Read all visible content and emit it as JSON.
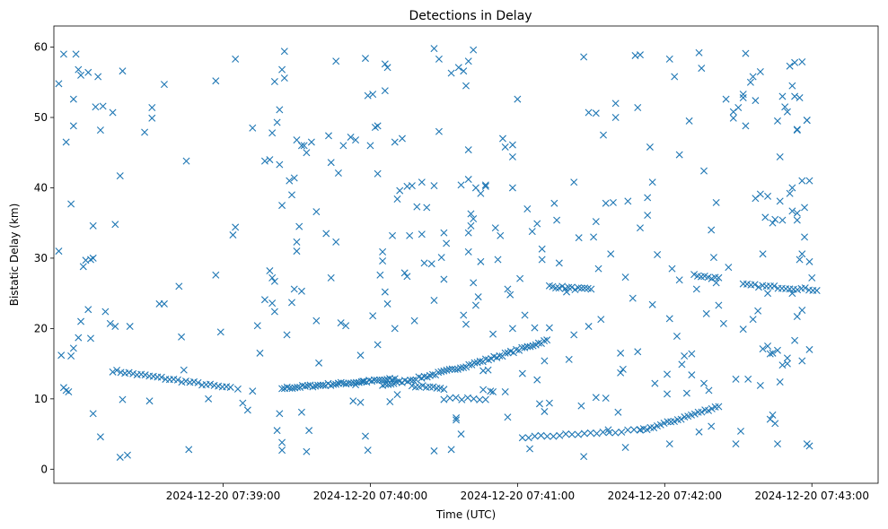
{
  "chart_data": {
    "type": "scatter",
    "title": "Detections in Delay",
    "xlabel": "Time (UTC)",
    "ylabel": "Bistatic Delay (km)",
    "x_unit": "seconds since 2024-12-20 07:38:00",
    "xlim": [
      -9,
      327
    ],
    "ylim": [
      -2,
      63
    ],
    "xticks": [
      60,
      120,
      180,
      240,
      300
    ],
    "xtick_labels": [
      "2024-12-20 07:39:00",
      "2024-12-20 07:40:00",
      "2024-12-20 07:41:00",
      "2024-12-20 07:42:00",
      "2024-12-20 07:43:00"
    ],
    "yticks": [
      0,
      10,
      20,
      30,
      40,
      50,
      60
    ],
    "ytick_labels": [
      "0",
      "10",
      "20",
      "30",
      "40",
      "50",
      "60"
    ],
    "marker": "x",
    "color": "#1f77b4",
    "tracks": [
      {
        "name": "track-1",
        "start": [
          15,
          14
        ],
        "end": [
          63,
          11.5
        ],
        "n": 30
      },
      {
        "name": "track-2",
        "start": [
          84,
          11.5
        ],
        "end": [
          130,
          12.8
        ],
        "n": 45
      },
      {
        "name": "track-3",
        "start": [
          125,
          12
        ],
        "end": [
          192,
          18.3
        ],
        "n": 60
      },
      {
        "name": "track-4",
        "start": [
          193,
          26
        ],
        "end": [
          210,
          25.5
        ],
        "n": 14
      },
      {
        "name": "track-5",
        "start": [
          182,
          4.5
        ],
        "end": [
          230,
          5.5
        ],
        "n": 20
      },
      {
        "name": "track-6",
        "start": [
          230,
          5.5
        ],
        "end": [
          262,
          9
        ],
        "n": 24
      },
      {
        "name": "track-7",
        "start": [
          252,
          27.6
        ],
        "end": [
          262,
          27.1
        ],
        "n": 8
      },
      {
        "name": "track-8",
        "start": [
          272,
          26.2
        ],
        "end": [
          302,
          25.5
        ],
        "n": 20
      },
      {
        "name": "track-9",
        "start": [
          137,
          11.8
        ],
        "end": [
          150,
          11.5
        ],
        "n": 10
      },
      {
        "name": "track-10",
        "start": [
          150,
          10
        ],
        "end": [
          167,
          10
        ],
        "n": 8
      }
    ],
    "points": [
      [
        -7,
        54.8
      ],
      [
        -7,
        31
      ],
      [
        -5,
        59
      ],
      [
        -4,
        46.5
      ],
      [
        -2,
        37.7
      ],
      [
        -1,
        48.8
      ],
      [
        -1,
        52.6
      ],
      [
        0,
        59
      ],
      [
        1,
        56.8
      ],
      [
        2,
        56
      ],
      [
        5,
        56.4
      ],
      [
        6,
        29.8
      ],
      [
        7,
        34.6
      ],
      [
        7,
        30
      ],
      [
        8,
        51.5
      ],
      [
        9,
        55.8
      ],
      [
        10,
        48.2
      ],
      [
        11,
        51.6
      ],
      [
        15,
        50.7
      ],
      [
        16,
        34.8
      ],
      [
        19,
        56.6
      ],
      [
        18,
        41.7
      ],
      [
        22,
        20.3
      ],
      [
        28,
        47.9
      ],
      [
        31,
        51.4
      ],
      [
        31,
        49.9
      ],
      [
        36,
        54.7
      ],
      [
        45,
        43.8
      ],
      [
        43,
        18.8
      ],
      [
        42,
        26
      ],
      [
        57,
        55.2
      ],
      [
        65,
        58.3
      ],
      [
        72,
        48.5
      ],
      [
        64,
        33.3
      ],
      [
        65,
        34.4
      ],
      [
        77,
        43.8
      ],
      [
        79,
        44
      ],
      [
        80,
        47.8
      ],
      [
        81,
        55.1
      ],
      [
        84,
        56.8
      ],
      [
        85,
        59.4
      ],
      [
        85,
        55.6
      ],
      [
        83,
        51.1
      ],
      [
        82,
        49.3
      ],
      [
        83,
        43.3
      ],
      [
        84,
        37.5
      ],
      [
        87,
        41
      ],
      [
        88,
        39
      ],
      [
        89,
        41.4
      ],
      [
        90,
        46.8
      ],
      [
        92,
        46
      ],
      [
        93,
        46
      ],
      [
        94,
        45
      ],
      [
        96,
        46.5
      ],
      [
        98,
        36.6
      ],
      [
        103,
        47.4
      ],
      [
        104,
        43.6
      ],
      [
        106,
        58
      ],
      [
        107,
        42.1
      ],
      [
        109,
        46
      ],
      [
        112,
        47.2
      ],
      [
        114,
        46.8
      ],
      [
        118,
        58.4
      ],
      [
        119,
        53.1
      ],
      [
        120,
        46
      ],
      [
        121,
        53.3
      ],
      [
        122,
        48.6
      ],
      [
        123,
        42
      ],
      [
        123,
        48.8
      ],
      [
        126,
        53.8
      ],
      [
        126,
        57.6
      ],
      [
        127,
        57.1
      ],
      [
        130,
        46.5
      ],
      [
        133,
        47
      ],
      [
        135,
        40.2
      ],
      [
        137,
        40.3
      ],
      [
        141,
        40.8
      ],
      [
        146,
        40.3
      ],
      [
        146,
        59.8
      ],
      [
        148,
        58.3
      ],
      [
        148,
        48
      ],
      [
        153,
        56.3
      ],
      [
        156,
        57.1
      ],
      [
        158,
        56.6
      ],
      [
        159,
        54.5
      ],
      [
        160,
        58
      ],
      [
        162,
        59.6
      ],
      [
        160,
        41.2
      ],
      [
        160,
        45.4
      ],
      [
        163,
        40
      ],
      [
        167,
        40.2
      ],
      [
        165,
        39.2
      ],
      [
        167,
        40.4
      ],
      [
        174,
        47
      ],
      [
        175,
        45.8
      ],
      [
        178,
        46.1
      ],
      [
        178,
        44.4
      ],
      [
        180,
        52.6
      ],
      [
        184,
        37
      ],
      [
        190,
        29.8
      ],
      [
        195,
        37.8
      ],
      [
        196,
        35.4
      ],
      [
        203,
        40.8
      ],
      [
        207,
        58.6
      ],
      [
        209,
        50.7
      ],
      [
        212,
        50.6
      ],
      [
        215,
        47.5
      ],
      [
        219,
        37.9
      ],
      [
        220,
        52
      ],
      [
        220,
        50
      ],
      [
        225,
        38.1
      ],
      [
        228,
        58.8
      ],
      [
        230,
        58.9
      ],
      [
        229,
        51.4
      ],
      [
        234,
        45.8
      ],
      [
        235,
        40.8
      ],
      [
        242,
        58.3
      ],
      [
        244,
        55.8
      ],
      [
        246,
        44.7
      ],
      [
        250,
        49.5
      ],
      [
        254,
        59.2
      ],
      [
        255,
        57
      ],
      [
        256,
        42.4
      ],
      [
        259,
        34
      ],
      [
        261,
        37.9
      ],
      [
        265,
        52.6
      ],
      [
        268,
        50.8
      ],
      [
        268,
        49.9
      ],
      [
        270,
        51.4
      ],
      [
        272,
        52.8
      ],
      [
        272,
        53.3
      ],
      [
        273,
        48.8
      ],
      [
        275,
        55
      ],
      [
        276,
        55.8
      ],
      [
        273,
        59.1
      ],
      [
        277,
        38.5
      ],
      [
        279,
        39.1
      ],
      [
        281,
        35.8
      ],
      [
        282,
        38.8
      ],
      [
        284,
        35
      ],
      [
        286,
        49.5
      ],
      [
        287,
        44.4
      ],
      [
        287,
        38.1
      ],
      [
        288,
        53
      ],
      [
        289,
        51.5
      ],
      [
        290,
        50.8
      ],
      [
        291,
        57.3
      ],
      [
        292,
        54.5
      ],
      [
        293,
        57.8
      ],
      [
        293,
        53
      ],
      [
        294,
        48.2
      ],
      [
        294,
        48.3
      ],
      [
        295,
        52.8
      ],
      [
        296,
        41
      ],
      [
        297,
        33
      ],
      [
        296,
        57.9
      ],
      [
        298,
        49.6
      ],
      [
        298,
        49.6
      ],
      [
        297,
        37.2
      ],
      [
        299,
        41
      ],
      [
        285,
        35.5
      ],
      [
        288,
        35.4
      ],
      [
        291,
        39.2
      ],
      [
        292,
        40
      ],
      [
        292,
        36.7
      ],
      [
        294,
        35.4
      ],
      [
        294,
        36.4
      ],
      [
        277,
        52.4
      ],
      [
        279,
        56.5
      ],
      [
        -6,
        16.2
      ],
      [
        -5,
        11.6
      ],
      [
        -4,
        11.2
      ],
      [
        -3,
        11
      ],
      [
        -2,
        16.1
      ],
      [
        -1,
        17.2
      ],
      [
        1,
        18.7
      ],
      [
        2,
        21
      ],
      [
        3,
        28.8
      ],
      [
        4,
        29.7
      ],
      [
        5,
        22.7
      ],
      [
        6,
        18.6
      ],
      [
        7,
        7.9
      ],
      [
        10,
        4.6
      ],
      [
        12,
        22.4
      ],
      [
        14,
        20.7
      ],
      [
        16,
        20.3
      ],
      [
        18,
        1.7
      ],
      [
        21,
        2
      ],
      [
        19,
        9.9
      ],
      [
        30,
        9.7
      ],
      [
        34,
        23.5
      ],
      [
        36,
        23.5
      ],
      [
        44,
        14.1
      ],
      [
        46,
        2.8
      ],
      [
        54,
        10
      ],
      [
        57,
        27.6
      ],
      [
        59,
        19.5
      ],
      [
        66,
        11.4
      ],
      [
        68,
        9.4
      ],
      [
        70,
        8.4
      ],
      [
        72,
        11.1
      ],
      [
        74,
        20.4
      ],
      [
        75,
        16.5
      ],
      [
        77,
        24.1
      ],
      [
        79,
        28.2
      ],
      [
        80,
        27.2
      ],
      [
        80,
        23.6
      ],
      [
        81,
        22.4
      ],
      [
        81,
        26.7
      ],
      [
        82,
        5.5
      ],
      [
        83,
        7.9
      ],
      [
        84,
        3.8
      ],
      [
        84,
        2.7
      ],
      [
        86,
        19.1
      ],
      [
        88,
        23.7
      ],
      [
        89,
        25.6
      ],
      [
        90,
        31
      ],
      [
        90,
        32.3
      ],
      [
        91,
        34.5
      ],
      [
        92,
        25.3
      ],
      [
        92,
        8.1
      ],
      [
        94,
        2.5
      ],
      [
        95,
        5.5
      ],
      [
        98,
        21.1
      ],
      [
        99,
        15.1
      ],
      [
        102,
        33.5
      ],
      [
        104,
        27.2
      ],
      [
        106,
        32.3
      ],
      [
        108,
        20.8
      ],
      [
        107,
        12.2
      ],
      [
        110,
        20.4
      ],
      [
        113,
        9.7
      ],
      [
        114,
        12
      ],
      [
        116,
        16.2
      ],
      [
        116,
        9.5
      ],
      [
        117,
        12.5
      ],
      [
        118,
        4.7
      ],
      [
        119,
        2.7
      ],
      [
        121,
        21.8
      ],
      [
        123,
        17.7
      ],
      [
        124,
        27.6
      ],
      [
        125,
        30.9
      ],
      [
        125,
        29.6
      ],
      [
        126,
        25.2
      ],
      [
        127,
        23.5
      ],
      [
        128,
        9.6
      ],
      [
        129,
        33.2
      ],
      [
        130,
        20
      ],
      [
        131,
        10.6
      ],
      [
        131,
        38.4
      ],
      [
        132,
        39.6
      ],
      [
        134,
        27.9
      ],
      [
        135,
        27.4
      ],
      [
        136,
        33.2
      ],
      [
        138,
        21.1
      ],
      [
        139,
        37.3
      ],
      [
        141,
        33.4
      ],
      [
        142,
        29.3
      ],
      [
        143,
        37.2
      ],
      [
        145,
        29.2
      ],
      [
        146,
        2.6
      ],
      [
        146,
        24
      ],
      [
        149,
        30.1
      ],
      [
        150,
        27
      ],
      [
        150,
        33.6
      ],
      [
        151,
        32.1
      ],
      [
        153,
        2.8
      ],
      [
        155,
        7.3
      ],
      [
        155,
        7
      ],
      [
        157,
        40.4
      ],
      [
        157,
        5
      ],
      [
        158,
        21.9
      ],
      [
        159,
        20.6
      ],
      [
        160,
        30.9
      ],
      [
        160,
        33.6
      ],
      [
        161,
        34.6
      ],
      [
        161,
        36.3
      ],
      [
        162,
        35.6
      ],
      [
        162,
        26.5
      ],
      [
        164,
        24.5
      ],
      [
        163,
        23.3
      ],
      [
        166,
        11.3
      ],
      [
        165,
        29.5
      ],
      [
        166,
        14
      ],
      [
        168,
        14.1
      ],
      [
        169,
        11.1
      ],
      [
        170,
        11
      ],
      [
        170,
        19.2
      ],
      [
        171,
        34.3
      ],
      [
        172,
        29.8
      ],
      [
        173,
        33.2
      ],
      [
        176,
        7.4
      ],
      [
        175,
        11
      ],
      [
        177,
        24.8
      ],
      [
        176,
        25.6
      ],
      [
        178,
        20
      ],
      [
        178,
        40
      ],
      [
        181,
        27.1
      ],
      [
        182,
        13.6
      ],
      [
        183,
        21.9
      ],
      [
        185,
        2.9
      ],
      [
        186,
        33.8
      ],
      [
        187,
        20.1
      ],
      [
        188,
        34.9
      ],
      [
        188,
        12.7
      ],
      [
        190,
        31.3
      ],
      [
        191,
        15.4
      ],
      [
        189,
        9.3
      ],
      [
        191,
        8.2
      ],
      [
        193,
        20.1
      ],
      [
        193,
        9.4
      ],
      [
        197,
        29.3
      ],
      [
        200,
        25.2
      ],
      [
        201,
        15.6
      ],
      [
        203,
        19.1
      ],
      [
        205,
        32.9
      ],
      [
        207,
        1.8
      ],
      [
        206,
        9
      ],
      [
        209,
        20.3
      ],
      [
        211,
        33
      ],
      [
        212,
        10.2
      ],
      [
        212,
        35.2
      ],
      [
        213,
        28.5
      ],
      [
        214,
        21.3
      ],
      [
        216,
        37.8
      ],
      [
        216,
        10.1
      ],
      [
        217,
        5.6
      ],
      [
        218,
        30.6
      ],
      [
        221,
        8.1
      ],
      [
        222,
        13.7
      ],
      [
        222,
        16.5
      ],
      [
        223,
        14.2
      ],
      [
        224,
        3.1
      ],
      [
        224,
        27.3
      ],
      [
        227,
        24.3
      ],
      [
        229,
        16.7
      ],
      [
        230,
        34.3
      ],
      [
        233,
        38.6
      ],
      [
        233,
        36.1
      ],
      [
        235,
        23.4
      ],
      [
        236,
        12.2
      ],
      [
        237,
        30.5
      ],
      [
        241,
        13.5
      ],
      [
        241,
        10.7
      ],
      [
        242,
        3.6
      ],
      [
        242,
        21.4
      ],
      [
        243,
        28.5
      ],
      [
        245,
        18.9
      ],
      [
        246,
        26.9
      ],
      [
        247,
        14.9
      ],
      [
        248,
        16.1
      ],
      [
        249,
        10.8
      ],
      [
        251,
        16.4
      ],
      [
        251,
        13.4
      ],
      [
        253,
        25.6
      ],
      [
        256,
        12.2
      ],
      [
        257,
        22.1
      ],
      [
        258,
        11.2
      ],
      [
        260,
        30.1
      ],
      [
        261,
        26.5
      ],
      [
        262,
        23.3
      ],
      [
        264,
        20.7
      ],
      [
        266,
        28.7
      ],
      [
        269,
        12.8
      ],
      [
        271,
        5.4
      ],
      [
        272,
        19.9
      ],
      [
        274,
        12.8
      ],
      [
        276,
        21.3
      ],
      [
        278,
        22.5
      ],
      [
        279,
        11.9
      ],
      [
        280,
        30.6
      ],
      [
        282,
        25
      ],
      [
        282,
        17.5
      ],
      [
        283,
        7.1
      ],
      [
        284,
        7.7
      ],
      [
        285,
        6.5
      ],
      [
        287,
        12.4
      ],
      [
        288,
        14.8
      ],
      [
        290,
        15
      ],
      [
        290,
        15.8
      ],
      [
        292,
        25
      ],
      [
        293,
        18.3
      ],
      [
        294,
        21.7
      ],
      [
        296,
        22.6
      ],
      [
        296,
        15.4
      ],
      [
        298,
        3.6
      ],
      [
        299,
        3.3
      ],
      [
        299,
        17
      ],
      [
        300,
        27.2
      ],
      [
        295,
        29.8
      ],
      [
        296,
        30.6
      ],
      [
        299,
        29.5
      ],
      [
        280,
        17.1
      ],
      [
        283,
        16.4
      ],
      [
        284,
        16.5
      ],
      [
        286,
        16.9
      ],
      [
        269,
        3.6
      ],
      [
        286,
        3.6
      ],
      [
        254,
        5.3
      ],
      [
        259,
        6.1
      ]
    ]
  }
}
